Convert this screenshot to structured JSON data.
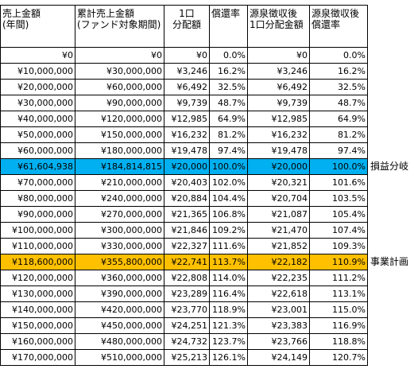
{
  "headers": [
    "売上金額\n(年間)",
    "累計売上金額\n(ファンド対象期間)",
    "1口\n分配額",
    "償還率",
    "源泉徴収後\n1口分配金額",
    "源泉徴収後\n償還率"
  ],
  "rows": [
    {
      "cells": [
        "¥0",
        "¥0",
        "¥0",
        "0.0%",
        "¥0",
        "0.0%"
      ],
      "note": "",
      "highlight": ""
    },
    {
      "cells": [
        "¥10,000,000",
        "¥30,000,000",
        "¥3,246",
        "16.2%",
        "¥3,246",
        "16.2%"
      ],
      "note": "",
      "highlight": ""
    },
    {
      "cells": [
        "¥20,000,000",
        "¥60,000,000",
        "¥6,492",
        "32.5%",
        "¥6,492",
        "32.5%"
      ],
      "note": "",
      "highlight": ""
    },
    {
      "cells": [
        "¥30,000,000",
        "¥90,000,000",
        "¥9,739",
        "48.7%",
        "¥9,739",
        "48.7%"
      ],
      "note": "",
      "highlight": ""
    },
    {
      "cells": [
        "¥40,000,000",
        "¥120,000,000",
        "¥12,985",
        "64.9%",
        "¥12,985",
        "64.9%"
      ],
      "note": "",
      "highlight": ""
    },
    {
      "cells": [
        "¥50,000,000",
        "¥150,000,000",
        "¥16,232",
        "81.2%",
        "¥16,232",
        "81.2%"
      ],
      "note": "",
      "highlight": ""
    },
    {
      "cells": [
        "¥60,000,000",
        "¥180,000,000",
        "¥19,478",
        "97.4%",
        "¥19,478",
        "97.4%"
      ],
      "note": "",
      "highlight": ""
    },
    {
      "cells": [
        "¥61,604,938",
        "¥184,814,815",
        "¥20,000",
        "100.0%",
        "¥20,000",
        "100.0%"
      ],
      "note": "損益分岐",
      "highlight": "blue"
    },
    {
      "cells": [
        "¥70,000,000",
        "¥210,000,000",
        "¥20,403",
        "102.0%",
        "¥20,321",
        "101.6%"
      ],
      "note": "",
      "highlight": ""
    },
    {
      "cells": [
        "¥80,000,000",
        "¥240,000,000",
        "¥20,884",
        "104.4%",
        "¥20,704",
        "103.5%"
      ],
      "note": "",
      "highlight": ""
    },
    {
      "cells": [
        "¥90,000,000",
        "¥270,000,000",
        "¥21,365",
        "106.8%",
        "¥21,087",
        "105.4%"
      ],
      "note": "",
      "highlight": ""
    },
    {
      "cells": [
        "¥100,000,000",
        "¥300,000,000",
        "¥21,846",
        "109.2%",
        "¥21,470",
        "107.4%"
      ],
      "note": "",
      "highlight": ""
    },
    {
      "cells": [
        "¥110,000,000",
        "¥330,000,000",
        "¥22,327",
        "111.6%",
        "¥21,852",
        "109.3%"
      ],
      "note": "",
      "highlight": ""
    },
    {
      "cells": [
        "¥118,600,000",
        "¥355,800,000",
        "¥22,741",
        "113.7%",
        "¥22,182",
        "110.9%"
      ],
      "note": "事業計画",
      "highlight": "orange"
    },
    {
      "cells": [
        "¥120,000,000",
        "¥360,000,000",
        "¥22,808",
        "114.0%",
        "¥22,235",
        "111.2%"
      ],
      "note": "",
      "highlight": ""
    },
    {
      "cells": [
        "¥130,000,000",
        "¥390,000,000",
        "¥23,289",
        "116.4%",
        "¥22,618",
        "113.1%"
      ],
      "note": "",
      "highlight": ""
    },
    {
      "cells": [
        "¥140,000,000",
        "¥420,000,000",
        "¥23,770",
        "118.9%",
        "¥23,001",
        "115.0%"
      ],
      "note": "",
      "highlight": ""
    },
    {
      "cells": [
        "¥150,000,000",
        "¥450,000,000",
        "¥24,251",
        "121.3%",
        "¥23,383",
        "116.9%"
      ],
      "note": "",
      "highlight": ""
    },
    {
      "cells": [
        "¥160,000,000",
        "¥480,000,000",
        "¥24,732",
        "123.7%",
        "¥23,766",
        "118.8%"
      ],
      "note": "",
      "highlight": ""
    },
    {
      "cells": [
        "¥170,000,000",
        "¥510,000,000",
        "¥25,213",
        "126.1%",
        "¥24,149",
        "120.7%"
      ],
      "note": "",
      "highlight": ""
    }
  ]
}
